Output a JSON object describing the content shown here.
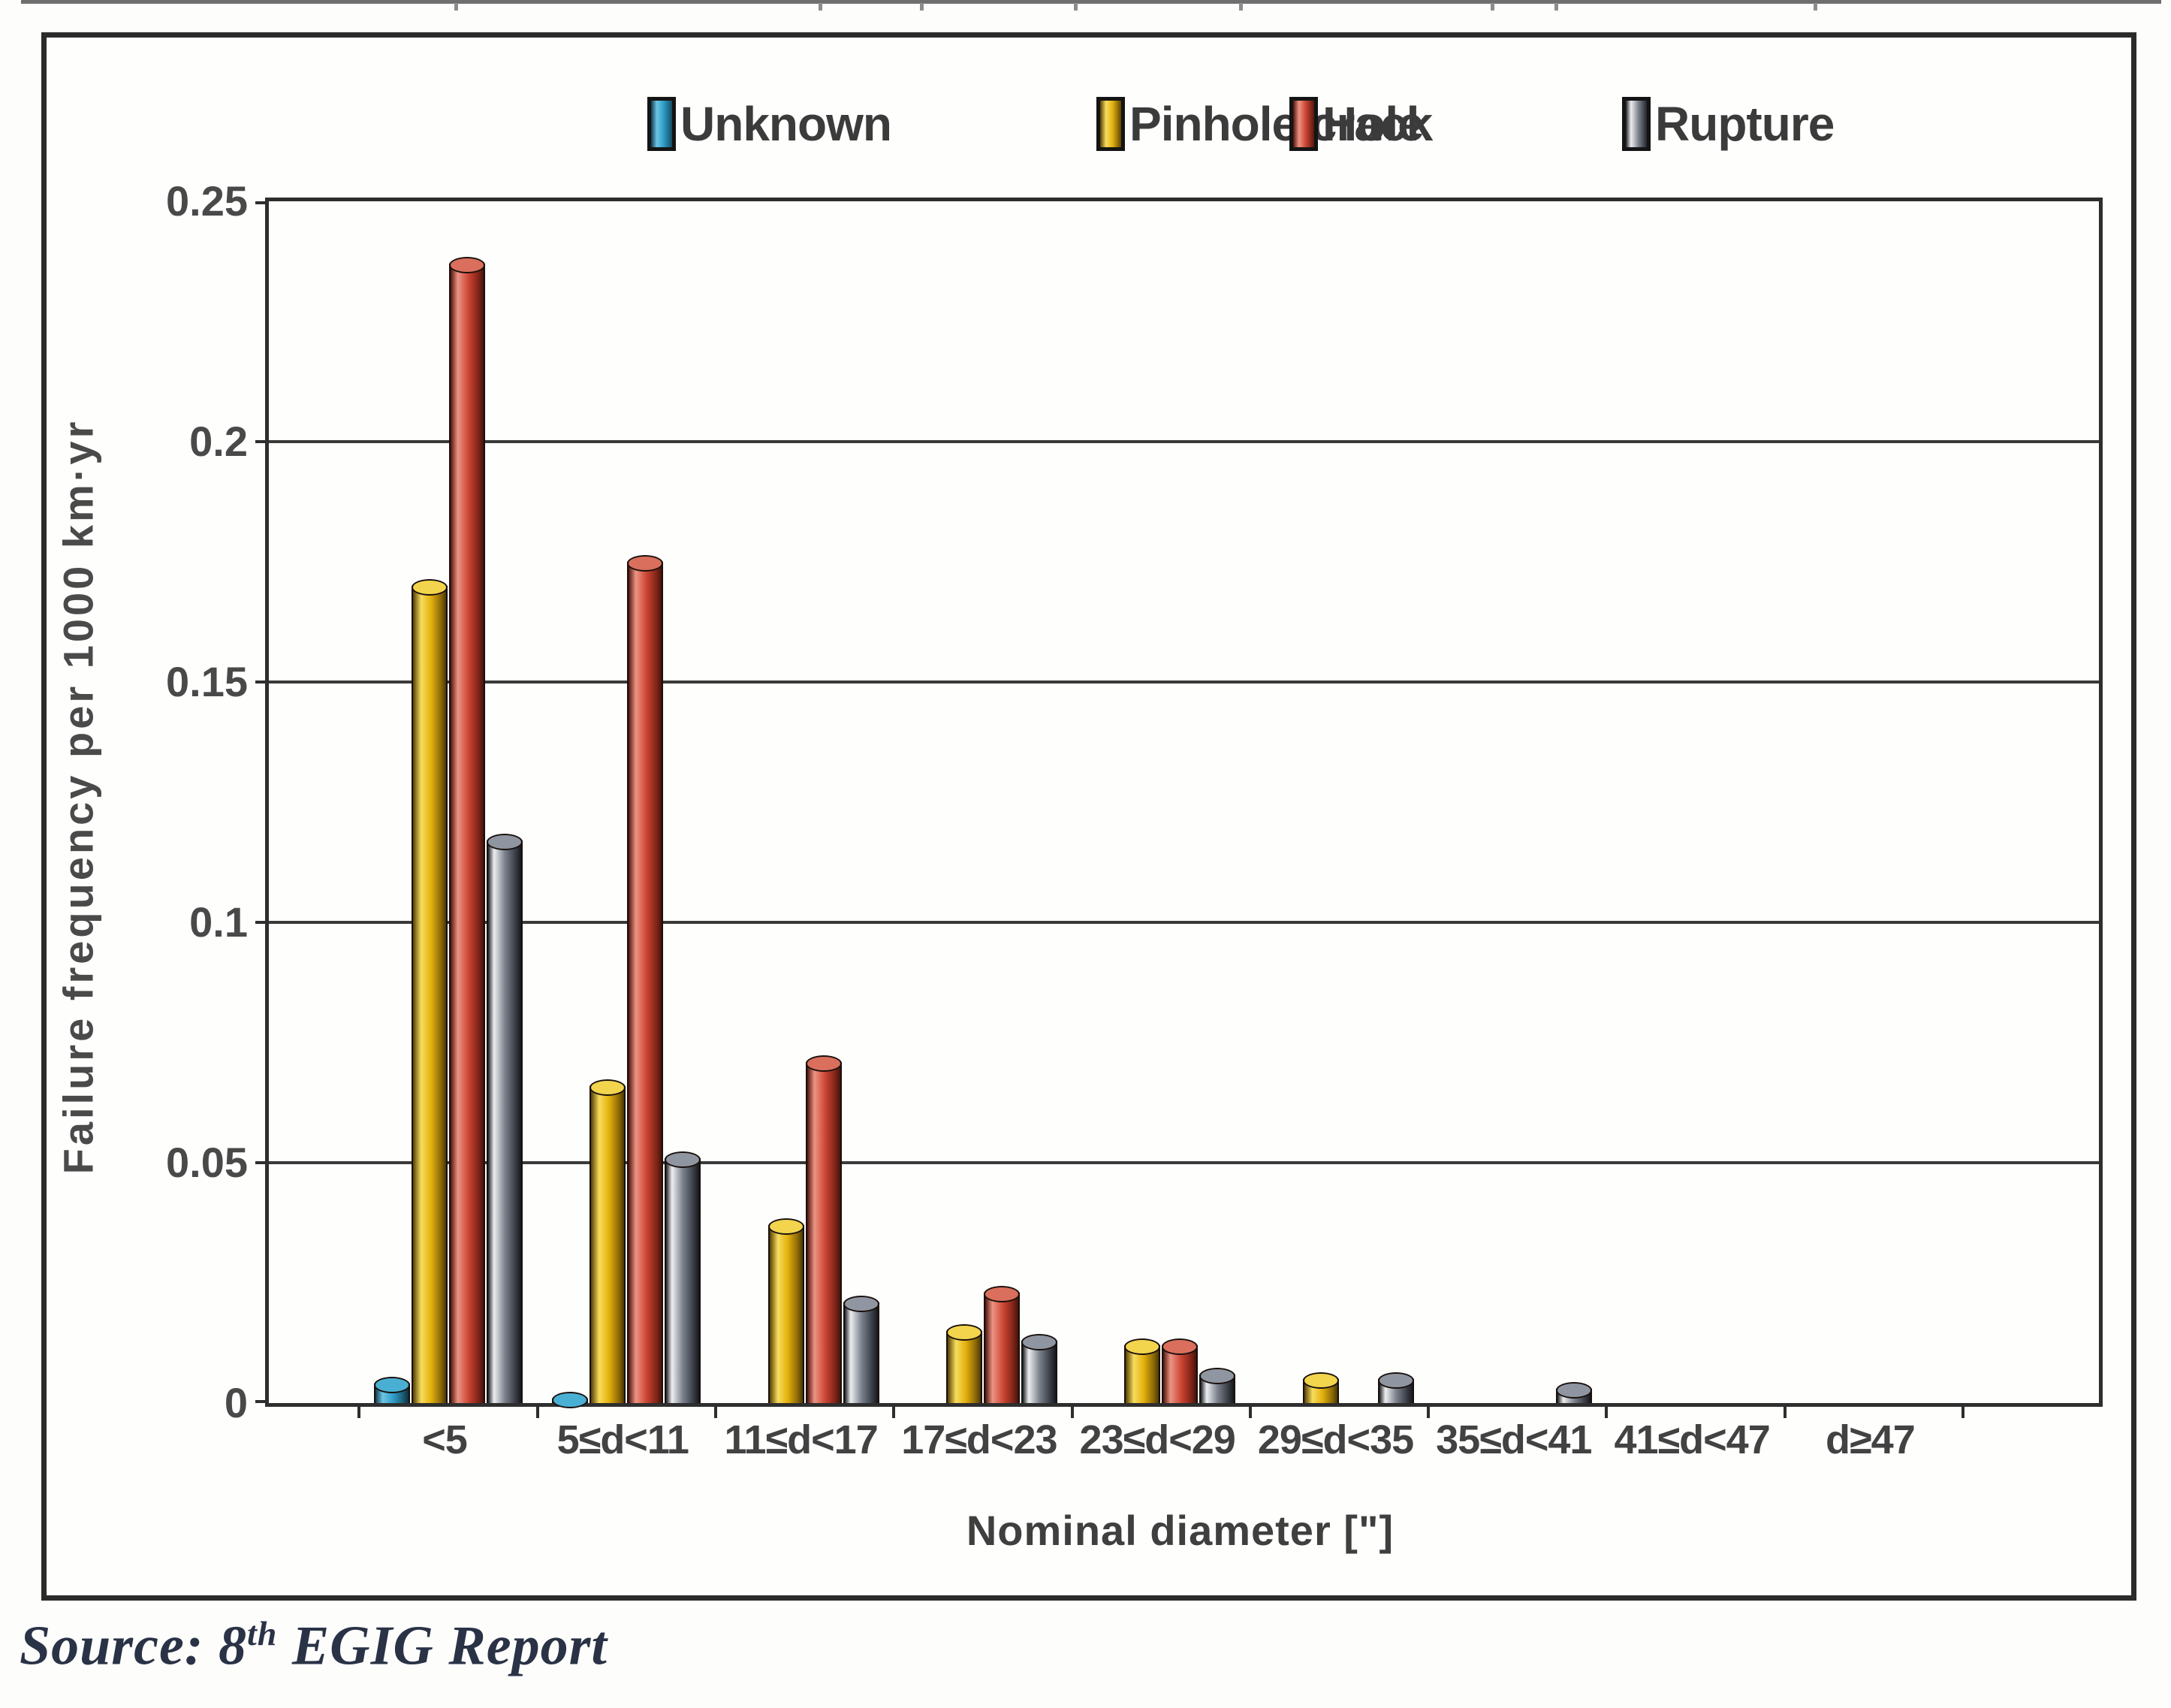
{
  "source": {
    "prefix": "Source: 8",
    "sup": "th",
    "suffix": " EGIG Report"
  },
  "chart_data": {
    "type": "bar",
    "title": "",
    "xlabel": "Nominal diameter [\"]",
    "ylabel": "Failure frequency per 1000 km·yr",
    "ylim": [
      0,
      0.25
    ],
    "yticks": [
      0,
      0.05,
      0.1,
      0.15,
      0.2,
      0.25
    ],
    "ytick_labels": [
      "0",
      "0.05",
      "0.1",
      "0.15",
      "0.2",
      "0.25"
    ],
    "grid": "horizontal",
    "legend_position": "top",
    "categories": [
      "<5",
      "5≤d<11",
      "11≤d<17",
      "17≤d<23",
      "23≤d<29",
      "29≤d<35",
      "35≤d<41",
      "41≤d<47",
      "d≥47"
    ],
    "series": [
      {
        "name": "Unknown",
        "color": "#2E9BC6",
        "values": [
          0.004,
          0.001,
          0,
          0,
          0,
          0,
          0,
          0,
          0
        ]
      },
      {
        "name": "Pinhole/crack",
        "color": "#E3B00C",
        "values": [
          0.17,
          0.066,
          0.037,
          0.015,
          0.012,
          0.005,
          0,
          0,
          0
        ]
      },
      {
        "name": "Hole",
        "color": "#CC4433",
        "values": [
          0.237,
          0.175,
          0.071,
          0.023,
          0.012,
          0,
          0,
          0,
          0
        ]
      },
      {
        "name": "Rupture",
        "color": "#5A5F6A",
        "values": [
          0.117,
          0.051,
          0.021,
          0.013,
          0.006,
          0.005,
          0.003,
          0,
          0
        ]
      }
    ]
  }
}
